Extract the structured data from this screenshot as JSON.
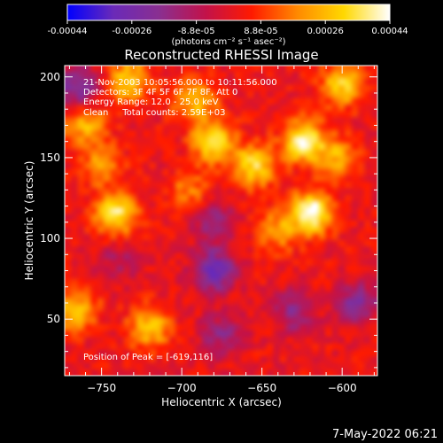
{
  "chart_data": {
    "type": "heatmap",
    "title": "Reconstructed RHESSI Image",
    "xlabel": "Heliocentric X (arcsec)",
    "ylabel": "Heliocentric Y (arcsec)",
    "xlim": [
      -773,
      -578
    ],
    "ylim": [
      15,
      207
    ],
    "xticks": [
      -750,
      -700,
      -650,
      -600
    ],
    "yticks": [
      50,
      100,
      150,
      200
    ],
    "grid": false,
    "colorbar": {
      "placement": "top",
      "min": -0.00044,
      "max": 0.00044,
      "ticks": [
        "-0.00044",
        "-0.00026",
        "-8.8e-05",
        "8.8e-05",
        "0.00026",
        "0.00044"
      ],
      "units_label": "(photons cm⁻² s⁻¹ asec⁻²)",
      "colormap": [
        "#0000ff",
        "#6a2ab8",
        "#8a2f90",
        "#c2124a",
        "#ff1a00",
        "#ff8a00",
        "#ffd800",
        "#ffffff"
      ]
    },
    "annotations": {
      "time_range": "21-Nov-2003 10:05:56.000 to 10:11:56.000",
      "detectors": "Detectors: 3F 4F 5F 6F 7F 8F, Att 0",
      "energy": "Energy Range: 12.0 - 25.0 keV",
      "method": "Clean     Total counts: 2.59E+03",
      "peak": "Position of Peak = [-619,116]"
    },
    "peak_position": [
      -619,
      116
    ],
    "sources": [
      {
        "x": -619,
        "y": 116,
        "value": 0.00044
      },
      {
        "x": -624,
        "y": 160,
        "value": 0.0004
      },
      {
        "x": -655,
        "y": 145,
        "value": 0.00032
      },
      {
        "x": -680,
        "y": 160,
        "value": 0.00034
      },
      {
        "x": -741,
        "y": 115,
        "value": 0.00036
      },
      {
        "x": -733,
        "y": 197,
        "value": 0.0003
      },
      {
        "x": -692,
        "y": 185,
        "value": 0.00026
      },
      {
        "x": -600,
        "y": 195,
        "value": 0.0003
      },
      {
        "x": -603,
        "y": 150,
        "value": 0.00022
      },
      {
        "x": -720,
        "y": 45,
        "value": 0.00028
      },
      {
        "x": -765,
        "y": 55,
        "value": 0.00026
      },
      {
        "x": -750,
        "y": 145,
        "value": 0.0002
      },
      {
        "x": -760,
        "y": 170,
        "value": 0.00024
      },
      {
        "x": -640,
        "y": 105,
        "value": 0.0002
      },
      {
        "x": -695,
        "y": 130,
        "value": 0.00016
      },
      {
        "x": -680,
        "y": 110,
        "value": -0.0002
      },
      {
        "x": -680,
        "y": 80,
        "value": -0.00032
      },
      {
        "x": -675,
        "y": 40,
        "value": -0.00018
      },
      {
        "x": -590,
        "y": 60,
        "value": -0.00024
      },
      {
        "x": -630,
        "y": 55,
        "value": -0.0002
      },
      {
        "x": -765,
        "y": 193,
        "value": -0.00026
      },
      {
        "x": -740,
        "y": 85,
        "value": -0.00012
      }
    ]
  },
  "footer": {
    "date": "7-May-2022 06:21"
  }
}
